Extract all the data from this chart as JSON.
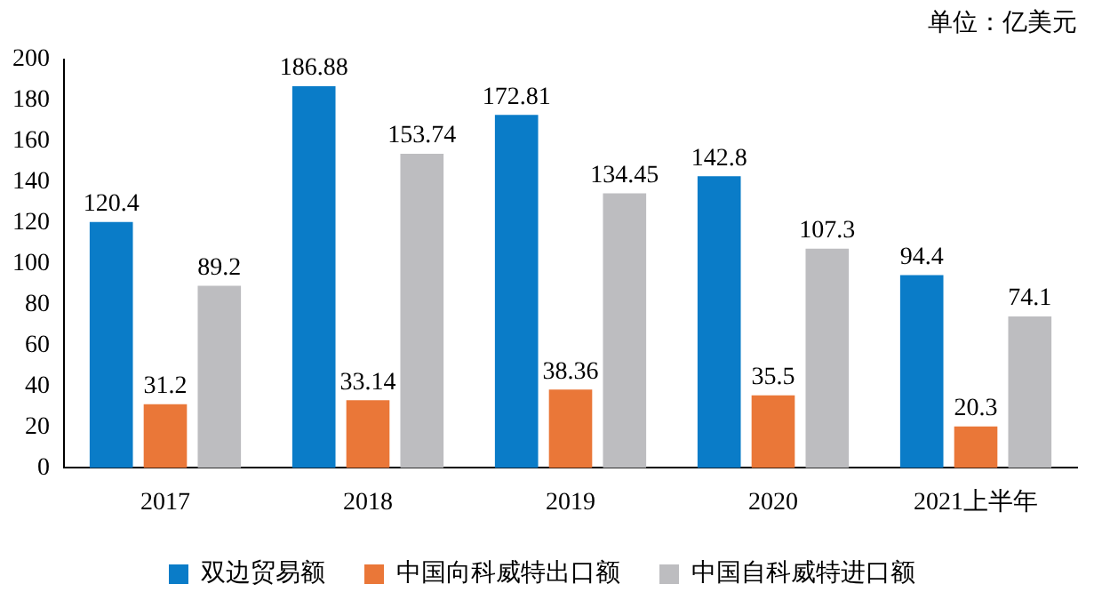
{
  "chart_data": {
    "type": "bar",
    "categories": [
      "2017",
      "2018",
      "2019",
      "2020",
      "2021上半年"
    ],
    "series": [
      {
        "name": "双边贸易额",
        "color": "#0a7cc8",
        "values": [
          120.4,
          186.88,
          172.81,
          142.8,
          94.4
        ]
      },
      {
        "name": "中国向科威特出口额",
        "color": "#ea7738",
        "values": [
          31.2,
          33.14,
          38.36,
          35.5,
          20.3
        ]
      },
      {
        "name": "中国自科威特进口额",
        "color": "#bdbdc0",
        "values": [
          89.2,
          153.74,
          134.45,
          107.3,
          74.1
        ]
      }
    ],
    "ylim": [
      0,
      200
    ],
    "yticks": [
      0,
      20,
      40,
      60,
      80,
      100,
      120,
      140,
      160,
      180,
      200
    ],
    "grid": false,
    "legend": "bottom",
    "data_labels": true,
    "annotations": [
      "单位：亿美元"
    ]
  }
}
